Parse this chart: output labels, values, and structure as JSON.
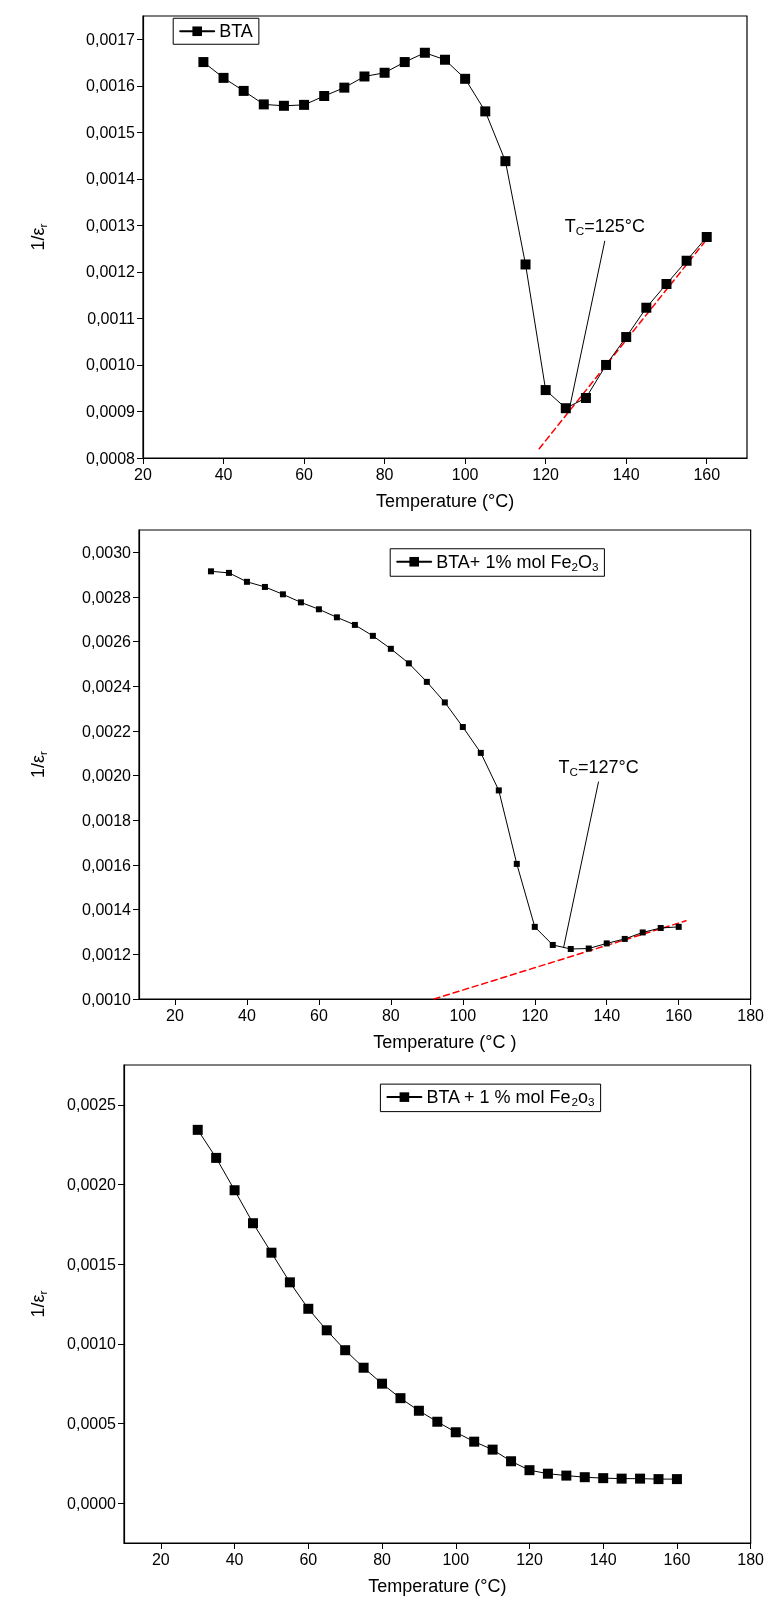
{
  "chart_data": [
    {
      "type": "line",
      "xlabel": "Temperature (°C)",
      "ylabel": "1/ε$_{r}$",
      "legend": "top left",
      "xlim": [
        20,
        170
      ],
      "xticks": [
        20,
        40,
        60,
        80,
        100,
        120,
        140,
        160
      ],
      "ylim": [
        0.0008,
        0.00175
      ],
      "yticks": [
        {
          "value": 0.0008,
          "label": "0,0008"
        },
        {
          "value": 0.0009,
          "label": "0,0009"
        },
        {
          "value": 0.001,
          "label": "0,0010"
        },
        {
          "value": 0.0011,
          "label": "0,0011"
        },
        {
          "value": 0.0012,
          "label": "0,0012"
        },
        {
          "value": 0.0013,
          "label": "0,0013"
        },
        {
          "value": 0.0014,
          "label": "0,0014"
        },
        {
          "value": 0.0015,
          "label": "0,0015"
        },
        {
          "value": 0.0016,
          "label": "0,0016"
        },
        {
          "value": 0.0017,
          "label": "0,0017"
        }
      ],
      "annotations": [
        {
          "text": "T$_{C}$=125°C",
          "x": 126,
          "y": 0.00091
        }
      ],
      "series": [
        {
          "name": "BTA",
          "color": "#000000",
          "marker": "square",
          "line_style": "solid",
          "x": [
            35,
            40,
            45,
            50,
            55,
            60,
            65,
            70,
            75,
            80,
            85,
            90,
            95,
            100,
            105,
            110,
            115,
            120,
            125,
            130,
            135,
            140,
            145,
            150,
            155,
            160
          ],
          "values": [
            0.001651,
            0.001617,
            0.001589,
            0.00156,
            0.001557,
            0.001559,
            0.001578,
            0.001596,
            0.00162,
            0.001628,
            0.001651,
            0.001671,
            0.001656,
            0.001615,
            0.001545,
            0.001438,
            0.001216,
            0.000946,
            0.000907,
            0.000929,
            0.001,
            0.00106,
            0.001123,
            0.001174,
            0.001224,
            0.001275
          ]
        },
        {
          "color": "#ff0000",
          "marker": "none",
          "line_style": "dashed",
          "x": [
            118.4,
            160
          ],
          "values": [
            0.00082,
            0.00127
          ]
        }
      ]
    },
    {
      "type": "line",
      "xlabel": "Temperature (°C )",
      "ylabel": "1/ε$_{r}$",
      "legend": "top right",
      "xlim": [
        10,
        180
      ],
      "xticks": [
        20,
        40,
        60,
        80,
        100,
        120,
        140,
        160,
        180
      ],
      "ylim": [
        0.001,
        0.0031
      ],
      "yticks": [
        {
          "value": 0.001,
          "label": "0,0010"
        },
        {
          "value": 0.0012,
          "label": "0,0012"
        },
        {
          "value": 0.0014,
          "label": "0,0014"
        },
        {
          "value": 0.0016,
          "label": "0,0016"
        },
        {
          "value": 0.0018,
          "label": "0,0018"
        },
        {
          "value": 0.002,
          "label": "0,0020"
        },
        {
          "value": 0.0022,
          "label": "0,0022"
        },
        {
          "value": 0.0024,
          "label": "0,0024"
        },
        {
          "value": 0.0026,
          "label": "0,0026"
        },
        {
          "value": 0.0028,
          "label": "0,0028"
        },
        {
          "value": 0.003,
          "label": "0,0030"
        }
      ],
      "annotations": [
        {
          "text": "T$_{C}$=127°C",
          "x": 128,
          "y": 0.00123
        }
      ],
      "series": [
        {
          "name": "BTA+ 1% mol Fe$_{2}$O$_{3}$",
          "color": "#000000",
          "marker": "square",
          "line_style": "solid",
          "x": [
            30,
            35,
            40,
            45,
            50,
            55,
            60,
            65,
            70,
            75,
            80,
            85,
            90,
            95,
            100,
            105,
            110,
            115,
            120,
            125,
            130,
            135,
            140,
            145,
            150,
            155,
            160
          ],
          "values": [
            0.002915,
            0.002908,
            0.002868,
            0.002845,
            0.002812,
            0.002776,
            0.002745,
            0.002709,
            0.002675,
            0.002626,
            0.002568,
            0.002503,
            0.00242,
            0.002328,
            0.002218,
            0.002102,
            0.001934,
            0.001605,
            0.001323,
            0.001242,
            0.001224,
            0.001226,
            0.001249,
            0.001269,
            0.001298,
            0.001318,
            0.001323
          ]
        },
        {
          "color": "#ff0000",
          "marker": "none",
          "line_style": "dashed",
          "x": [
            92,
            162
          ],
          "values": [
            0.001,
            0.00135
          ]
        }
      ]
    },
    {
      "type": "line",
      "xlabel": "Temperature (°C)",
      "ylabel": "1/ε$_{r}$",
      "legend": "top right",
      "xlim": [
        10,
        180
      ],
      "xticks": [
        20,
        40,
        60,
        80,
        100,
        120,
        140,
        160,
        180
      ],
      "ylim": [
        -0.00025,
        0.00275
      ],
      "yticks": [
        {
          "value": 0,
          "label": "0,0000"
        },
        {
          "value": 0.0005,
          "label": "0,0005"
        },
        {
          "value": 0.001,
          "label": "0,0010"
        },
        {
          "value": 0.0015,
          "label": "0,0015"
        },
        {
          "value": 0.002,
          "label": "0,0020"
        },
        {
          "value": 0.0025,
          "label": "0,0025"
        }
      ],
      "series": [
        {
          "name": "BTA + 1 % mol Fe$_{2}$o$_{3}$",
          "color": "#000000",
          "marker": "square",
          "line_style": "solid",
          "x": [
            30,
            35,
            40,
            45,
            50,
            55,
            60,
            65,
            70,
            75,
            80,
            85,
            90,
            95,
            100,
            105,
            110,
            115,
            120,
            125,
            130,
            135,
            140,
            145,
            150,
            155,
            160
          ],
          "values": [
            0.002343,
            0.002167,
            0.001964,
            0.001757,
            0.001572,
            0.001386,
            0.00122,
            0.001085,
            0.00096,
            0.00085,
            0.00075,
            0.000659,
            0.00058,
            0.000511,
            0.000445,
            0.000386,
            0.000336,
            0.000263,
            0.000207,
            0.000185,
            0.000173,
            0.000163,
            0.000157,
            0.000154,
            0.000154,
            0.000151,
            0.000151
          ]
        }
      ]
    }
  ]
}
